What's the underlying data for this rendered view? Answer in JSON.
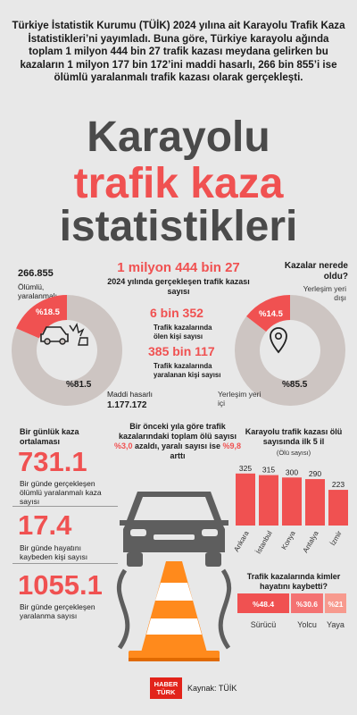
{
  "intro": "Türkiye İstatistik Kurumu (TÜİK) 2024 yılına ait Karayolu Trafik Kaza İstatistikleri’ni yayımladı. Buna göre, Türkiye karayolu ağında toplam 1 milyon 444 bin 27 trafik kazası meydana gelirken bu kazaların 1 milyon 177 bin 172’ini maddi hasarlı, 266 bin 855’i ise ölümlü yaralanmalı trafik kazası olarak gerçekleşti.",
  "title": {
    "line1": "Karayolu",
    "line2": "trafik kaza",
    "line3": "istatistikleri"
  },
  "left_donut": {
    "top_value": "266.855",
    "top_label": "Ölümlü, yaralanmalı",
    "small_pct": "%18.5",
    "big_pct": "%81.5",
    "bottom_label": "Maddi hasarlı",
    "bottom_value": "1.177.172"
  },
  "center_stats": {
    "total_value": "1 milyon 444 bin 27",
    "total_label": "2024 yılında gerçekleşen trafik kazası sayısı",
    "deaths_value": "6 bin 352",
    "deaths_label": "Trafik kazalarında ölen kişi sayısı",
    "injured_value": "385 bin 117",
    "injured_label": "Trafik kazalarında yaralanan kişi sayısı"
  },
  "right_donut": {
    "question": "Kazalar nerede oldu?",
    "outside_label": "Yerleşim yeri dışı",
    "small_pct": "%14.5",
    "big_pct": "%85.5",
    "inside_label": "Yerleşim yeri içi"
  },
  "daily": {
    "heading": "Bir günlük kaza ortalaması",
    "items": [
      {
        "value": "731.1",
        "label": "Bir günde gerçekleşen ölümlü yaralanmalı kaza sayısı"
      },
      {
        "value": "17.4",
        "label": "Bir günde hayatını kaybeden kişi sayısı"
      },
      {
        "value": "1055.1",
        "label": "Bir günde gerçekleşen yaralanma sayısı"
      }
    ]
  },
  "change_note": {
    "part1": "Bir önceki yıla göre trafik kazalarındaki toplam ölü sayısı ",
    "highlight1": "%3,0",
    "part2": " azaldı, yaralı sayısı ise ",
    "highlight2": "%9,8",
    "part3": " arttı"
  },
  "bar_chart_title": "Karayolu trafik kazası ölü sayısında ilk 5 il",
  "bar_chart_unit": "(Ölü sayısı)",
  "victims_title": "Trafik kazalarında kimler hayatını kaybetti?",
  "source": {
    "brand_line1": "HABER",
    "brand_line2": "TÜRK",
    "text": "Kaynak: TÜİK"
  },
  "colors": {
    "accent": "#f05151",
    "donut_gray": "#cdc5c2",
    "dark_text": "#4a4a4a",
    "car": "#5e5e5e",
    "cone": "#ff8a1c"
  },
  "icons": [
    "crash-car-icon",
    "location-pin-icon",
    "car-icon",
    "traffic-cone-icon",
    "haberturk-logo"
  ],
  "chart_data": [
    {
      "type": "pie",
      "title": "",
      "categories": [
        "Ölümlü, yaralanmalı",
        "Maddi hasarlı"
      ],
      "values": [
        18.5,
        81.5
      ],
      "counts": [
        266855,
        1177172
      ]
    },
    {
      "type": "pie",
      "title": "Kazalar nerede oldu?",
      "categories": [
        "Yerleşim yeri dışı",
        "Yerleşim yeri içi"
      ],
      "values": [
        14.5,
        85.5
      ]
    },
    {
      "type": "bar",
      "title": "Karayolu trafik kazası ölü sayısında ilk 5 il",
      "ylabel": "(Ölü sayısı)",
      "categories": [
        "Ankara",
        "İstanbul",
        "Konya",
        "Antalya",
        "İzmir"
      ],
      "values": [
        325,
        315,
        300,
        290,
        223
      ]
    },
    {
      "type": "bar",
      "title": "Trafik kazalarında kimler hayatını kaybetti?",
      "categories": [
        "Sürücü",
        "Yolcu",
        "Yaya"
      ],
      "values": [
        48.4,
        30.6,
        21
      ],
      "labels": [
        "%48.4",
        "%30.6",
        "%21"
      ]
    }
  ]
}
